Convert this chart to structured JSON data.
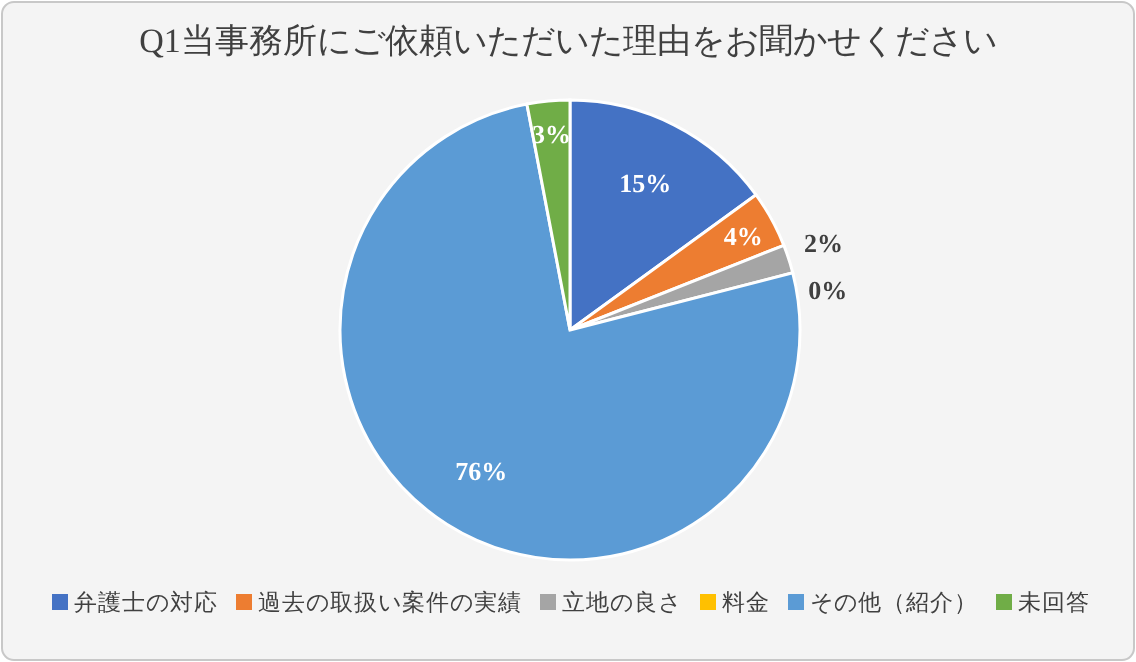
{
  "chart_data": {
    "type": "pie",
    "title": "Q1当事務所にご依頼いただいた理由をお聞かせください",
    "categories": [
      "弁護士の対応",
      "過去の取扱い案件の実績",
      "立地の良さ",
      "料金",
      "その他（紹介）",
      "未回答"
    ],
    "values": [
      15,
      4,
      2,
      0,
      76,
      3
    ],
    "colors": [
      "#4472c4",
      "#ed7d31",
      "#a5a5a5",
      "#ffc000",
      "#5b9bd5",
      "#70ad47"
    ],
    "value_labels": [
      "15%",
      "4%",
      "2%",
      "0%",
      "76%",
      "3%"
    ],
    "legend": "bottom"
  }
}
